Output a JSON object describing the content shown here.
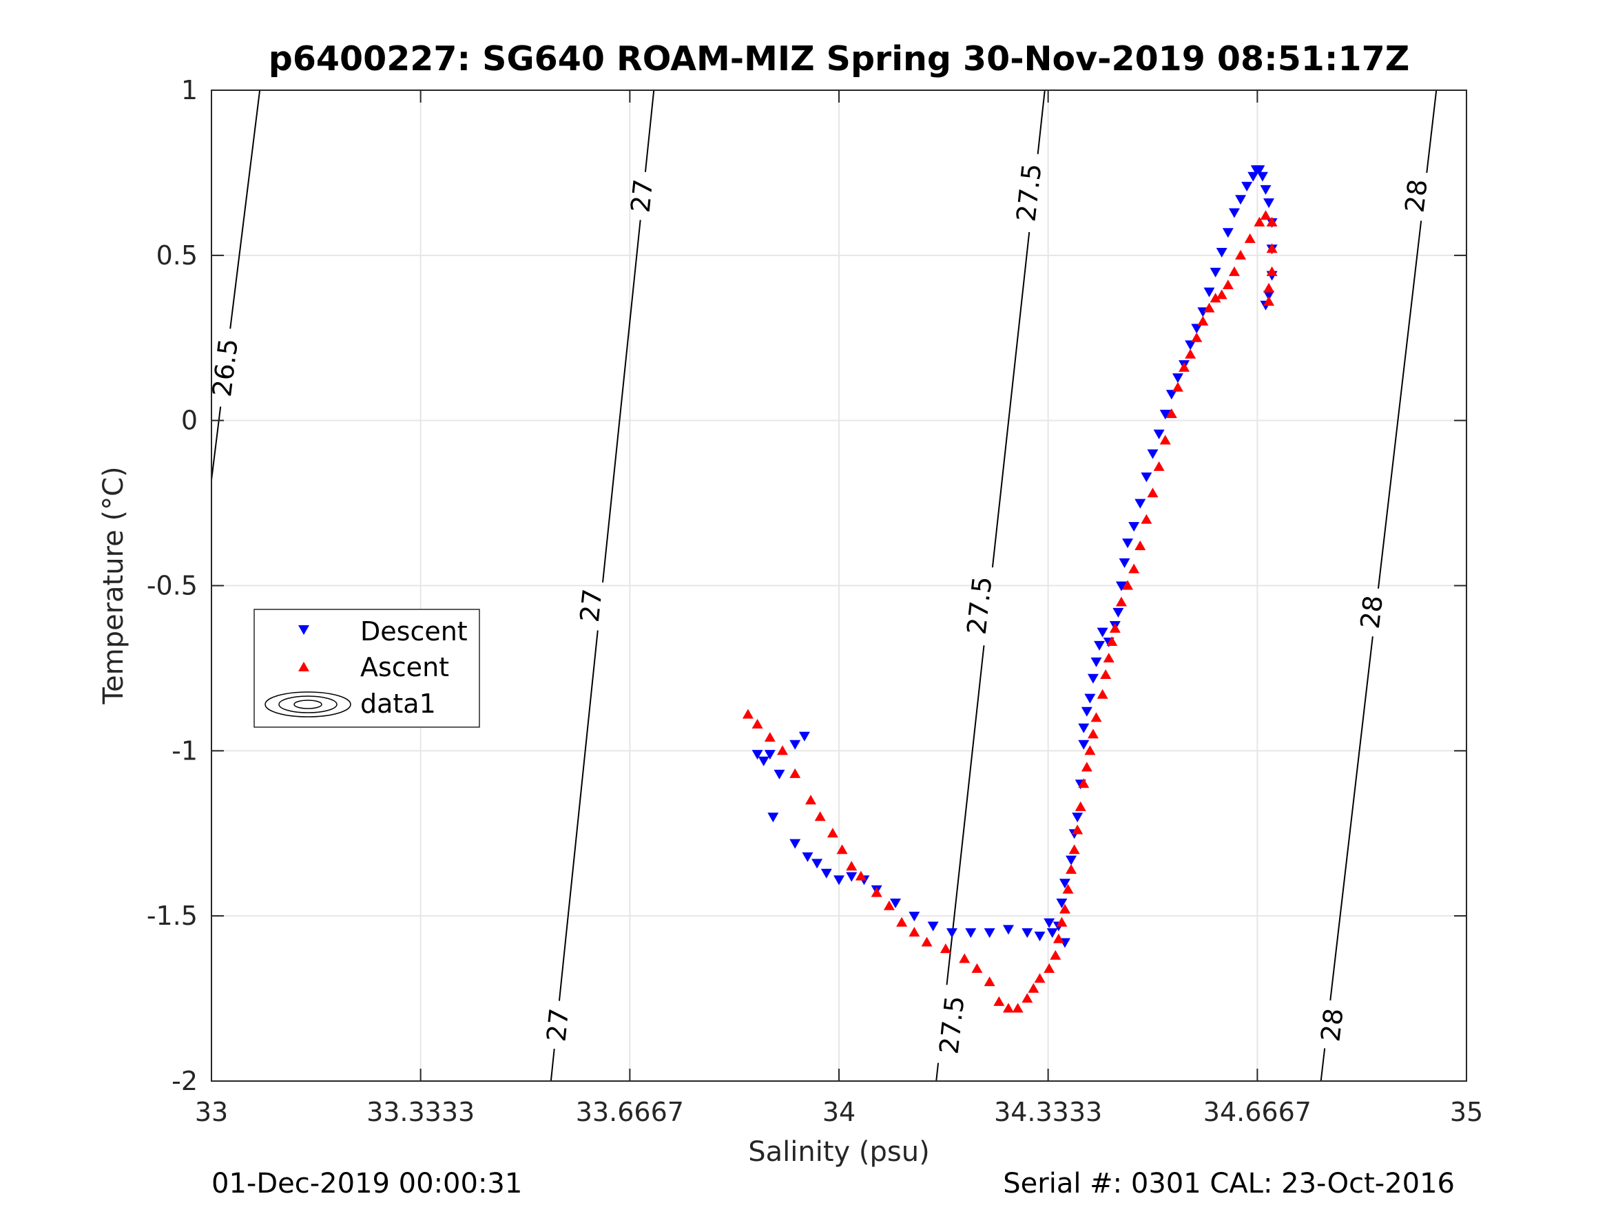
{
  "colors": {
    "descent": "#0000ff",
    "ascent": "#ff0000",
    "grid": "#e6e6e6",
    "axis": "#262626",
    "contour": "#000000"
  },
  "footer": {
    "left": "01-Dec-2019 00:00:31",
    "right": "Serial #: 0301  CAL: 23-Oct-2016"
  },
  "chart_data": {
    "type": "scatter",
    "title": "p6400227: SG640 ROAM-MIZ Spring 30-Nov-2019 08:51:17Z",
    "xlabel": "Salinity (psu)",
    "ylabel": "Temperature (°C)",
    "xlim": [
      33,
      35
    ],
    "ylim": [
      -2,
      1
    ],
    "xticks": [
      33,
      33.3333,
      33.6667,
      34,
      34.3333,
      34.6667,
      35
    ],
    "xtick_labels": [
      "33",
      "33.3333",
      "33.6667",
      "34",
      "34.3333",
      "34.6667",
      "35"
    ],
    "yticks": [
      -2,
      -1.5,
      -1,
      -0.5,
      0,
      0.5,
      1
    ],
    "ytick_labels": [
      "-2",
      "-1.5",
      "-1",
      "-0.5",
      "0",
      "0.5",
      "1"
    ],
    "grid": true,
    "legend_position": "middle-left",
    "legend": [
      "Descent",
      "Ascent",
      "data1"
    ],
    "contours": [
      {
        "level": "26.5",
        "points": [
          [
            33.077,
            1.0
          ],
          [
            33.0,
            -0.18
          ]
        ],
        "label_positions": [
          [
            33.022,
            0.16
          ]
        ]
      },
      {
        "level": "27",
        "points": [
          [
            33.705,
            1.0
          ],
          [
            33.541,
            -2.0
          ]
        ],
        "label_positions": [
          [
            33.686,
            0.68
          ],
          [
            33.605,
            -0.56
          ],
          [
            33.552,
            -1.83
          ]
        ]
      },
      {
        "level": "27.5",
        "points": [
          [
            34.328,
            1.0
          ],
          [
            34.155,
            -2.0
          ]
        ],
        "label_positions": [
          [
            34.303,
            0.69
          ],
          [
            34.224,
            -0.56
          ],
          [
            34.18,
            -1.83
          ]
        ]
      },
      {
        "level": "28",
        "points": [
          [
            34.952,
            1.0
          ],
          [
            34.768,
            -2.0
          ]
        ],
        "label_positions": [
          [
            34.92,
            0.68
          ],
          [
            34.849,
            -0.58
          ],
          [
            34.786,
            -1.83
          ]
        ]
      }
    ],
    "series": [
      {
        "name": "Descent",
        "marker": "triangle-down",
        "points": [
          [
            33.945,
            -0.955
          ],
          [
            33.93,
            -0.98
          ],
          [
            33.89,
            -1.01
          ],
          [
            33.87,
            -1.01
          ],
          [
            33.88,
            -1.03
          ],
          [
            33.905,
            -1.07
          ],
          [
            33.895,
            -1.2
          ],
          [
            33.93,
            -1.28
          ],
          [
            33.95,
            -1.32
          ],
          [
            33.965,
            -1.34
          ],
          [
            33.98,
            -1.37
          ],
          [
            34.0,
            -1.39
          ],
          [
            34.02,
            -1.38
          ],
          [
            34.04,
            -1.39
          ],
          [
            34.06,
            -1.42
          ],
          [
            34.09,
            -1.46
          ],
          [
            34.12,
            -1.5
          ],
          [
            34.15,
            -1.53
          ],
          [
            34.18,
            -1.55
          ],
          [
            34.21,
            -1.55
          ],
          [
            34.24,
            -1.55
          ],
          [
            34.27,
            -1.54
          ],
          [
            34.3,
            -1.55
          ],
          [
            34.32,
            -1.56
          ],
          [
            34.335,
            -1.52
          ],
          [
            34.34,
            -1.55
          ],
          [
            34.35,
            -1.53
          ],
          [
            34.36,
            -1.58
          ],
          [
            34.355,
            -1.46
          ],
          [
            34.36,
            -1.4
          ],
          [
            34.37,
            -1.33
          ],
          [
            34.375,
            -1.25
          ],
          [
            34.38,
            -1.2
          ],
          [
            34.385,
            -1.1
          ],
          [
            34.39,
            -0.98
          ],
          [
            34.39,
            -0.93
          ],
          [
            34.395,
            -0.88
          ],
          [
            34.4,
            -0.84
          ],
          [
            34.405,
            -0.78
          ],
          [
            34.41,
            -0.73
          ],
          [
            34.415,
            -0.68
          ],
          [
            34.42,
            -0.64
          ],
          [
            34.43,
            -0.67
          ],
          [
            34.44,
            -0.62
          ],
          [
            34.445,
            -0.58
          ],
          [
            34.45,
            -0.5
          ],
          [
            34.455,
            -0.43
          ],
          [
            34.46,
            -0.37
          ],
          [
            34.47,
            -0.32
          ],
          [
            34.48,
            -0.25
          ],
          [
            34.49,
            -0.17
          ],
          [
            34.5,
            -0.1
          ],
          [
            34.51,
            -0.04
          ],
          [
            34.52,
            0.02
          ],
          [
            34.53,
            0.08
          ],
          [
            34.54,
            0.13
          ],
          [
            34.55,
            0.17
          ],
          [
            34.56,
            0.23
          ],
          [
            34.57,
            0.28
          ],
          [
            34.58,
            0.33
          ],
          [
            34.59,
            0.39
          ],
          [
            34.6,
            0.45
          ],
          [
            34.61,
            0.51
          ],
          [
            34.62,
            0.57
          ],
          [
            34.63,
            0.63
          ],
          [
            34.64,
            0.67
          ],
          [
            34.65,
            0.71
          ],
          [
            34.66,
            0.74
          ],
          [
            34.665,
            0.76
          ],
          [
            34.67,
            0.76
          ],
          [
            34.675,
            0.74
          ],
          [
            34.68,
            0.7
          ],
          [
            34.685,
            0.66
          ],
          [
            34.69,
            0.6
          ],
          [
            34.69,
            0.52
          ],
          [
            34.69,
            0.44
          ],
          [
            34.685,
            0.38
          ],
          [
            34.68,
            0.35
          ]
        ]
      },
      {
        "name": "Ascent",
        "marker": "triangle-up",
        "points": [
          [
            33.855,
            -0.89
          ],
          [
            33.87,
            -0.92
          ],
          [
            33.89,
            -0.96
          ],
          [
            33.91,
            -1.0
          ],
          [
            33.93,
            -1.07
          ],
          [
            33.955,
            -1.15
          ],
          [
            33.97,
            -1.2
          ],
          [
            33.99,
            -1.25
          ],
          [
            34.005,
            -1.3
          ],
          [
            34.02,
            -1.35
          ],
          [
            34.035,
            -1.38
          ],
          [
            34.06,
            -1.43
          ],
          [
            34.08,
            -1.47
          ],
          [
            34.1,
            -1.52
          ],
          [
            34.12,
            -1.55
          ],
          [
            34.14,
            -1.58
          ],
          [
            34.17,
            -1.6
          ],
          [
            34.2,
            -1.63
          ],
          [
            34.22,
            -1.66
          ],
          [
            34.24,
            -1.7
          ],
          [
            34.255,
            -1.76
          ],
          [
            34.27,
            -1.78
          ],
          [
            34.285,
            -1.78
          ],
          [
            34.3,
            -1.75
          ],
          [
            34.31,
            -1.72
          ],
          [
            34.32,
            -1.69
          ],
          [
            34.335,
            -1.66
          ],
          [
            34.345,
            -1.62
          ],
          [
            34.35,
            -1.57
          ],
          [
            34.355,
            -1.52
          ],
          [
            34.36,
            -1.48
          ],
          [
            34.365,
            -1.42
          ],
          [
            34.37,
            -1.36
          ],
          [
            34.375,
            -1.3
          ],
          [
            34.38,
            -1.24
          ],
          [
            34.385,
            -1.17
          ],
          [
            34.39,
            -1.1
          ],
          [
            34.395,
            -1.05
          ],
          [
            34.4,
            -1.0
          ],
          [
            34.405,
            -0.95
          ],
          [
            34.41,
            -0.9
          ],
          [
            34.42,
            -0.83
          ],
          [
            34.425,
            -0.77
          ],
          [
            34.43,
            -0.72
          ],
          [
            34.435,
            -0.67
          ],
          [
            34.44,
            -0.63
          ],
          [
            34.45,
            -0.55
          ],
          [
            34.46,
            -0.5
          ],
          [
            34.47,
            -0.45
          ],
          [
            34.48,
            -0.38
          ],
          [
            34.49,
            -0.3
          ],
          [
            34.5,
            -0.22
          ],
          [
            34.51,
            -0.14
          ],
          [
            34.52,
            -0.06
          ],
          [
            34.53,
            0.02
          ],
          [
            34.54,
            0.1
          ],
          [
            34.55,
            0.16
          ],
          [
            34.56,
            0.2
          ],
          [
            34.57,
            0.25
          ],
          [
            34.58,
            0.3
          ],
          [
            34.59,
            0.34
          ],
          [
            34.6,
            0.37
          ],
          [
            34.61,
            0.38
          ],
          [
            34.62,
            0.41
          ],
          [
            34.63,
            0.45
          ],
          [
            34.64,
            0.5
          ],
          [
            34.655,
            0.55
          ],
          [
            34.67,
            0.6
          ],
          [
            34.68,
            0.62
          ],
          [
            34.69,
            0.6
          ],
          [
            34.69,
            0.52
          ],
          [
            34.69,
            0.45
          ],
          [
            34.685,
            0.4
          ],
          [
            34.685,
            0.36
          ]
        ]
      }
    ]
  }
}
